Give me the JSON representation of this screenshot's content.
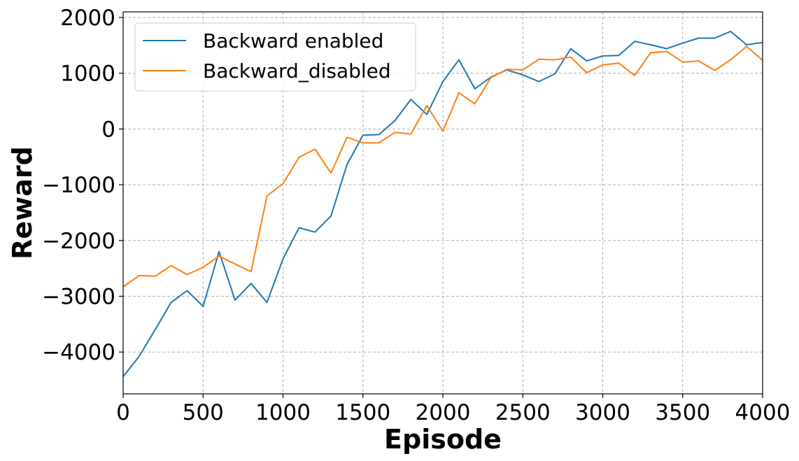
{
  "chart_data": {
    "type": "line",
    "xlabel": "Episode",
    "ylabel": "Reward",
    "xlim": [
      0,
      4000
    ],
    "ylim": [
      -4750,
      2100
    ],
    "x_ticks": [
      0,
      500,
      1000,
      1500,
      2000,
      2500,
      3000,
      3500,
      4000
    ],
    "x_tick_labels": [
      "0",
      "500",
      "1000",
      "1500",
      "2000",
      "2500",
      "3000",
      "3500",
      "4000"
    ],
    "y_ticks": [
      -4000,
      -3000,
      -2000,
      -1000,
      0,
      1000,
      2000
    ],
    "y_tick_labels": [
      "−4000",
      "−3000",
      "−2000",
      "−1000",
      "0",
      "1000",
      "2000"
    ],
    "grid": true,
    "legend_position": "top-left",
    "x": [
      0,
      100,
      200,
      300,
      400,
      500,
      600,
      700,
      800,
      900,
      1000,
      1100,
      1200,
      1300,
      1400,
      1500,
      1600,
      1700,
      1800,
      1900,
      2000,
      2100,
      2200,
      2300,
      2400,
      2500,
      2600,
      2700,
      2800,
      2900,
      3000,
      3100,
      3200,
      3300,
      3400,
      3500,
      3600,
      3700,
      3800,
      3900,
      4000
    ],
    "series": [
      {
        "name": "Backward enabled",
        "color": "#1f77b4",
        "values": [
          -4440,
          -4080,
          -3600,
          -3110,
          -2900,
          -3180,
          -2200,
          -3070,
          -2770,
          -3110,
          -2330,
          -1770,
          -1850,
          -1560,
          -640,
          -110,
          -100,
          150,
          530,
          260,
          850,
          1240,
          720,
          930,
          1060,
          970,
          850,
          990,
          1440,
          1220,
          1310,
          1320,
          1570,
          1510,
          1440,
          1540,
          1630,
          1630,
          1750,
          1510,
          1550
        ]
      },
      {
        "name": "Backward_disabled",
        "color": "#ff7f0e",
        "values": [
          -2830,
          -2630,
          -2640,
          -2450,
          -2610,
          -2480,
          -2280,
          -2420,
          -2560,
          -1200,
          -980,
          -510,
          -360,
          -790,
          -150,
          -250,
          -250,
          -60,
          -90,
          420,
          -40,
          650,
          450,
          920,
          1070,
          1060,
          1250,
          1240,
          1290,
          1010,
          1150,
          1180,
          960,
          1370,
          1390,
          1200,
          1220,
          1050,
          1240,
          1480,
          1230
        ]
      }
    ]
  }
}
